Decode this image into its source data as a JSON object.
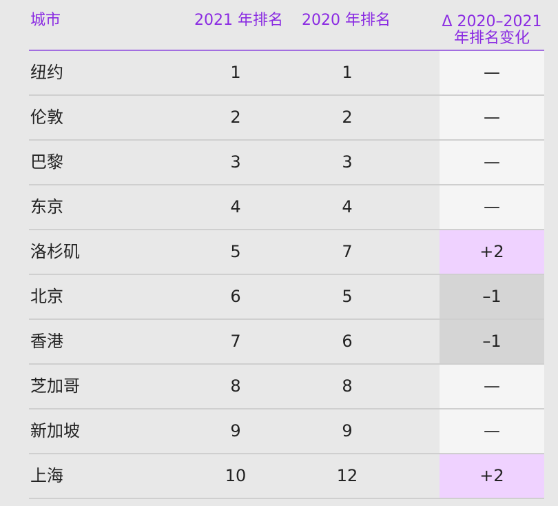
{
  "header": {
    "city": "城市",
    "rank_2021": "2021 年排名",
    "rank_2020": "2020 年排名",
    "delta_line1": "Δ 2020–2021",
    "delta_line2": "年排名变化"
  },
  "rows": [
    {
      "city": "纽约",
      "rank_2021": "1",
      "rank_2020": "1",
      "delta": "—",
      "delta_type": "none"
    },
    {
      "city": "伦敦",
      "rank_2021": "2",
      "rank_2020": "2",
      "delta": "—",
      "delta_type": "none"
    },
    {
      "city": "巴黎",
      "rank_2021": "3",
      "rank_2020": "3",
      "delta": "—",
      "delta_type": "none"
    },
    {
      "city": "东京",
      "rank_2021": "4",
      "rank_2020": "4",
      "delta": "—",
      "delta_type": "none"
    },
    {
      "city": "洛杉矶",
      "rank_2021": "5",
      "rank_2020": "7",
      "delta": "+2",
      "delta_type": "up"
    },
    {
      "city": "北京",
      "rank_2021": "6",
      "rank_2020": "5",
      "delta": "–1",
      "delta_type": "down"
    },
    {
      "city": "香港",
      "rank_2021": "7",
      "rank_2020": "6",
      "delta": "–1",
      "delta_type": "down"
    },
    {
      "city": "芝加哥",
      "rank_2021": "8",
      "rank_2020": "8",
      "delta": "—",
      "delta_type": "none"
    },
    {
      "city": "新加坡",
      "rank_2021": "9",
      "rank_2020": "9",
      "delta": "—",
      "delta_type": "none"
    },
    {
      "city": "上海",
      "rank_2021": "10",
      "rank_2020": "12",
      "delta": "+2",
      "delta_type": "up"
    }
  ],
  "colors": {
    "header_text": "#8a2be2",
    "header_rule": "#a26ee0",
    "up_bg": "#efd2ff",
    "down_bg": "#d5d5d5",
    "none_bg": "#f5f5f5",
    "page_bg": "#e8e8e8"
  }
}
